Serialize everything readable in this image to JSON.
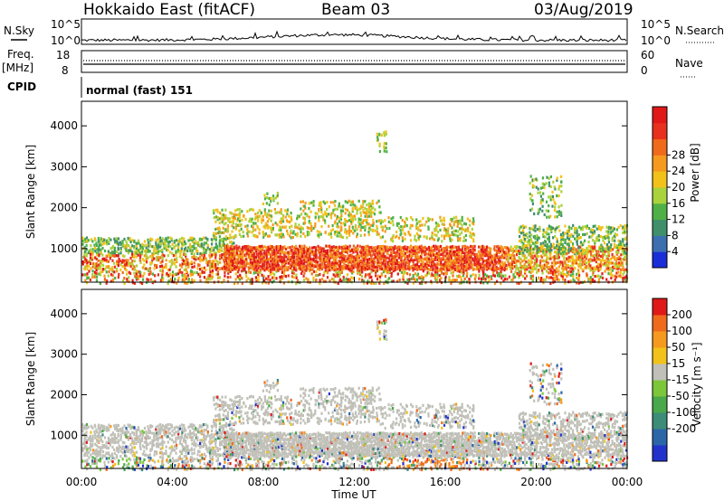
{
  "header": {
    "title": "Hokkaido East (fitACF)",
    "beam": "Beam 03",
    "date": "03/Aug/2019"
  },
  "noise_panel": {
    "label": "N.Sky",
    "ytick_top": "10^5",
    "ytick_bottom": "10^0",
    "right_label": "N.Search",
    "right_tick_top": "10^5",
    "right_tick_bottom": "10^0"
  },
  "freq_panel": {
    "label": "Freq.",
    "unit": "[MHz]",
    "ytick_top": "18",
    "ytick_bottom": "8",
    "right_label": "Nave",
    "right_tick_top": "60",
    "right_tick_bottom": "0"
  },
  "cpid_panel": {
    "label": "CPID",
    "value": "normal (fast) 151"
  },
  "chart_data": [
    {
      "type": "heatmap",
      "name": "power",
      "ylabel": "Slant Range [km]",
      "xlabel": "Time UT",
      "ylim": [
        180,
        4600
      ],
      "yticks": [
        "1000",
        "2000",
        "3000",
        "4000"
      ],
      "xticks": [
        "00:00",
        "04:00",
        "08:00",
        "12:00",
        "16:00",
        "20:00",
        "00:00"
      ],
      "colorbar": {
        "label": "Power [dB]",
        "ticks": [
          "4",
          "8",
          "12",
          "16",
          "20",
          "24",
          "28"
        ],
        "colors": [
          "#1a2ed8",
          "#3c6fb0",
          "#3f8f6b",
          "#4fb046",
          "#a9d23c",
          "#f2c21a",
          "#f59a1e",
          "#f06a1c",
          "#e8301e",
          "#e01818"
        ]
      }
    },
    {
      "type": "heatmap",
      "name": "velocity",
      "ylabel": "Slant Range [km]",
      "xlabel": "Time UT",
      "ylim": [
        180,
        4600
      ],
      "yticks": [
        "1000",
        "2000",
        "3000",
        "4000"
      ],
      "xticks": [
        "00:00",
        "04:00",
        "08:00",
        "12:00",
        "16:00",
        "20:00",
        "00:00"
      ],
      "colorbar": {
        "label": "Velocity [m s⁻¹]",
        "ticks": [
          "200",
          "100",
          "50",
          "15",
          "-15",
          "-50",
          "-100",
          "-200"
        ],
        "colors": [
          "#2233cc",
          "#2b66a8",
          "#3c8c78",
          "#49a84a",
          "#7cc63a",
          "#c0c0b8",
          "#f2c21a",
          "#f59a1e",
          "#f06a1c",
          "#e01818"
        ]
      }
    }
  ],
  "colors": {
    "ground_scatter": "#c0c0b8",
    "axis": "#000000"
  }
}
